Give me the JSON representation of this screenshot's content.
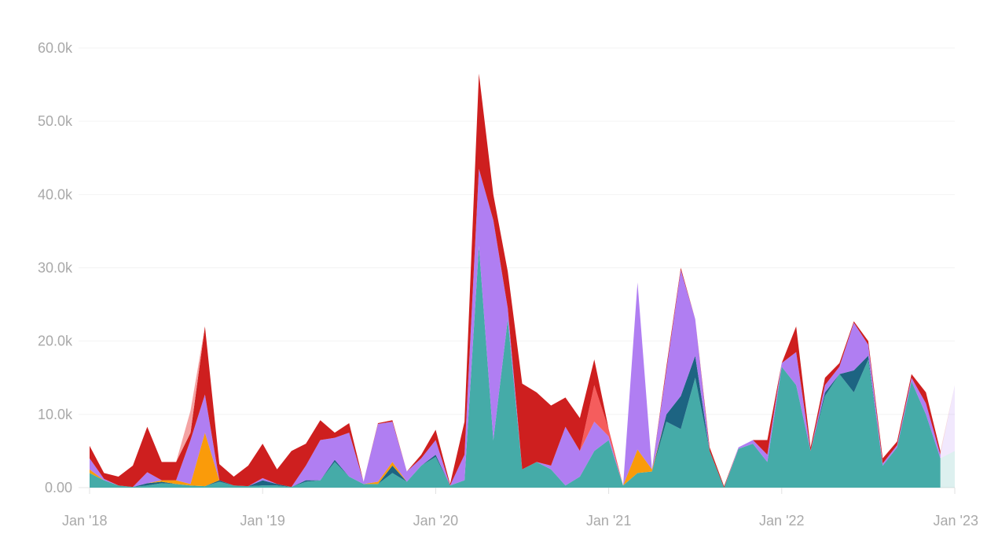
{
  "chart_data": {
    "type": "area",
    "stacked": true,
    "title": "",
    "xlabel": "",
    "ylabel": "",
    "ylim": [
      0,
      60000
    ],
    "grid": true,
    "legend": "none",
    "y_ticks": [
      {
        "value": 0,
        "label": "0.00"
      },
      {
        "value": 10000,
        "label": "10.0k"
      },
      {
        "value": 20000,
        "label": "20.0k"
      },
      {
        "value": 30000,
        "label": "30.0k"
      },
      {
        "value": 40000,
        "label": "40.0k"
      },
      {
        "value": 50000,
        "label": "50.0k"
      },
      {
        "value": 60000,
        "label": "60.0k"
      }
    ],
    "x_ticks": [
      {
        "index": 0,
        "label": "Jan '18"
      },
      {
        "index": 12,
        "label": "Jan '19"
      },
      {
        "index": 24,
        "label": "Jan '20"
      },
      {
        "index": 36,
        "label": "Jan '21"
      },
      {
        "index": 48,
        "label": "Jan '22"
      },
      {
        "index": 60,
        "label": "Jan '23"
      }
    ],
    "x_unit": "month index from Jan 2018",
    "incomplete_last_point": true,
    "series": [
      {
        "name": "teal",
        "color": "#45ABA8",
        "values": [
          2,
          1,
          0.3,
          0.1,
          0.3,
          0.6,
          0.5,
          0.3,
          0.2,
          0.8,
          0.3,
          0.2,
          0.3,
          0.3,
          0.1,
          0.8,
          1,
          3.5,
          1.5,
          0.5,
          0.5,
          2,
          0.8,
          3,
          4.2,
          0.3,
          1,
          33,
          6.5,
          23,
          2.5,
          3.5,
          2.5,
          0.3,
          1.5,
          5,
          6.5,
          0.3,
          2,
          2.2,
          9,
          8,
          15,
          5,
          0,
          5.3,
          6,
          3.5,
          16.5,
          14,
          5,
          12.5,
          15.5,
          13,
          17.5,
          3,
          5.5,
          14.5,
          10,
          4,
          5
        ]
      },
      {
        "name": "dark-blue",
        "color": "#1D6482",
        "values": [
          0,
          0,
          0,
          0,
          0.3,
          0.2,
          0,
          0,
          0,
          0.2,
          0,
          0,
          0.7,
          0.2,
          0,
          0.2,
          0,
          0.3,
          0,
          0,
          0,
          1,
          0,
          0,
          0.3,
          0,
          0,
          0,
          0,
          0,
          0,
          0,
          0,
          0,
          0,
          0,
          0,
          0,
          0,
          0,
          1,
          4.5,
          3,
          0,
          0,
          0,
          0,
          0,
          0,
          0,
          0,
          0.5,
          0,
          3,
          0.5,
          0,
          0,
          0,
          0,
          0,
          0
        ]
      },
      {
        "name": "orange",
        "color": "#FA9B0A",
        "values": [
          0.5,
          0,
          0,
          0,
          0,
          0.2,
          0.5,
          0.2,
          7.3,
          0,
          0,
          0,
          0,
          0,
          0,
          0,
          0,
          0,
          0,
          0,
          0.3,
          0.5,
          0,
          0,
          0,
          0,
          0,
          0,
          0,
          0,
          0,
          0,
          0,
          0,
          0,
          0,
          0,
          0,
          3.2,
          0.3,
          0,
          0,
          0,
          0,
          0,
          0,
          0,
          0,
          0,
          0,
          0,
          0,
          0,
          0,
          0,
          0,
          0,
          0,
          0,
          0,
          0
        ]
      },
      {
        "name": "purple",
        "color": "#B07EF2",
        "values": [
          1.5,
          0.2,
          0,
          0,
          1.5,
          0,
          0,
          6,
          5.2,
          0,
          0,
          0,
          0.3,
          0,
          0,
          2,
          5.5,
          3,
          6,
          0.3,
          7.9,
          5.5,
          1.4,
          1,
          2,
          0,
          3.5,
          10.5,
          30,
          1.5,
          0,
          0,
          0.5,
          8,
          3.5,
          4,
          0.5,
          0,
          22.8,
          0,
          6,
          17.2,
          5,
          0,
          0,
          0.2,
          0.5,
          1,
          0.5,
          4.5,
          0,
          1,
          1,
          6.5,
          1.5,
          0.3,
          0.3,
          0.5,
          1.5,
          0.5,
          9
        ]
      },
      {
        "name": "salmon",
        "color": "#F55D5D",
        "values": [
          0,
          0,
          0,
          0,
          0,
          0,
          0,
          0,
          0,
          0,
          0,
          0,
          0,
          0,
          0,
          0,
          0,
          0,
          0,
          0,
          0,
          0,
          0,
          0,
          0,
          0,
          0,
          0,
          0,
          0,
          0,
          0,
          0,
          0,
          0,
          5,
          1,
          0,
          0,
          0,
          0,
          0,
          0,
          0,
          0,
          0,
          0,
          0,
          0,
          0,
          0,
          0,
          0,
          0,
          0,
          0,
          0,
          0,
          0,
          0,
          0
        ]
      },
      {
        "name": "red",
        "color": "#CE1F1F",
        "values": [
          1.7,
          0.8,
          1.2,
          2.9,
          6.2,
          2.5,
          2.5,
          1,
          9.3,
          2.2,
          1.2,
          2.8,
          4.7,
          2,
          4.9,
          3,
          2.7,
          0.7,
          1.3,
          0,
          0.1,
          0.2,
          0,
          0.5,
          1.4,
          0.2,
          4.5,
          13,
          3.5,
          5,
          11.7,
          9.5,
          8.2,
          4,
          4.5,
          3.5,
          0,
          0,
          0,
          0,
          0.5,
          0.3,
          0,
          0.5,
          0.2,
          0,
          0,
          2,
          0,
          3.5,
          0.5,
          1,
          0.5,
          0.2,
          0.5,
          0.7,
          0.5,
          0.5,
          1.5,
          0.5,
          0
        ]
      },
      {
        "name": "light-pink",
        "color": "#F4A3A3",
        "values": [
          0,
          0,
          0,
          0,
          0,
          0,
          0,
          3,
          0,
          0,
          0,
          0,
          0,
          0,
          0,
          0,
          0,
          0,
          0,
          0,
          0,
          0,
          0,
          0,
          0,
          0,
          0,
          0,
          0,
          0,
          0,
          0,
          0,
          0,
          0,
          0,
          0,
          0,
          0,
          0,
          0,
          0,
          0,
          0,
          0,
          0,
          0,
          0,
          0,
          0,
          0,
          0,
          0,
          0,
          0,
          0,
          0,
          0,
          0,
          0,
          0
        ]
      }
    ],
    "value_unit": "thousands"
  }
}
